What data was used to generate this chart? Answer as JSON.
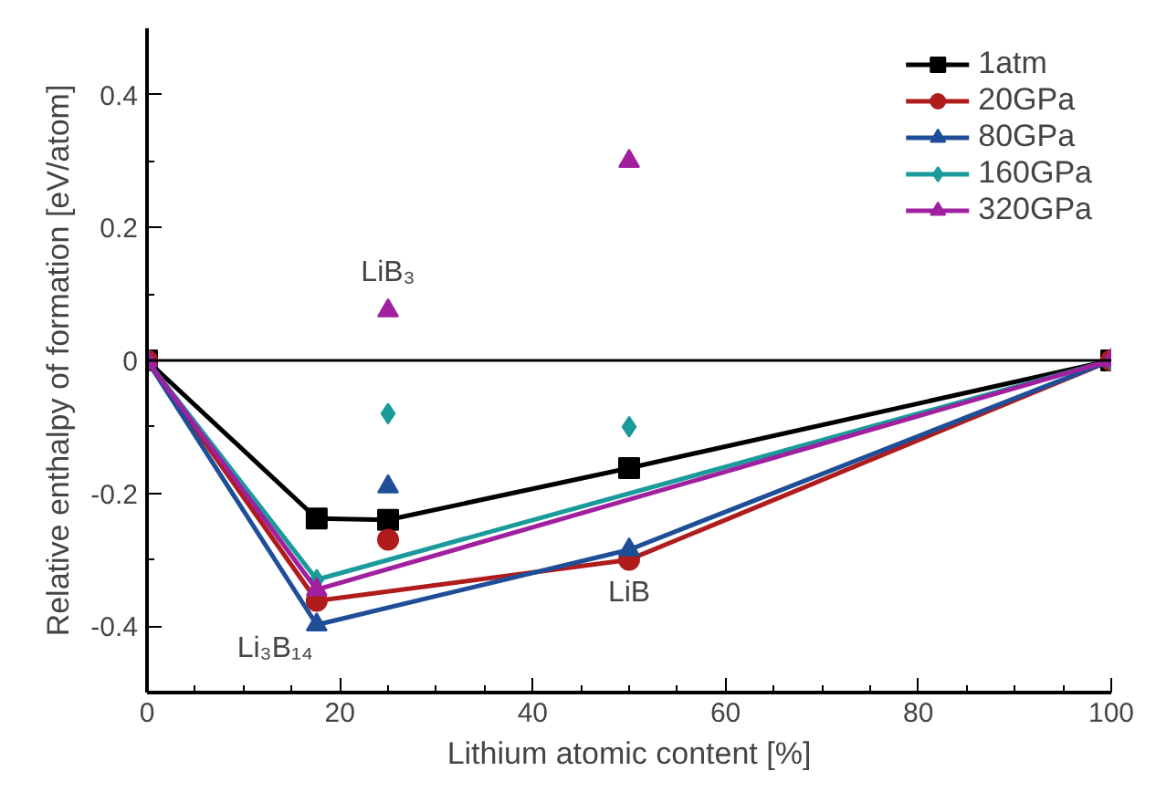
{
  "chart_data": {
    "type": "line",
    "xlabel": "Lithium atomic content [%]",
    "ylabel": "Relative enthalpy of formation [eV/atom]",
    "xlim": [
      0,
      100
    ],
    "ylim": [
      -0.5,
      0.5
    ],
    "xticks": [
      0,
      20,
      40,
      60,
      80,
      100
    ],
    "yticks": [
      {
        "value": -0.4,
        "label": "-0.4"
      },
      {
        "value": -0.2,
        "label": "-0.2"
      },
      0,
      {
        "value": 0.2,
        "label": "0.2"
      },
      {
        "value": 0.4,
        "label": "0.4"
      }
    ],
    "grid": false,
    "legend": "top right",
    "ref_lines": [
      {
        "axis": "y",
        "value": 0,
        "color": "#000000"
      }
    ],
    "annotations": [
      {
        "text": "LiB₃",
        "x": 25,
        "y": 0.075
      },
      {
        "text": "Li₃B₁₄",
        "x": 17.6,
        "y": -0.4
      },
      {
        "text": "LiB",
        "x": 50,
        "y": -0.3
      }
    ],
    "series": [
      {
        "name": "1atm",
        "color": "#000000",
        "marker": "square",
        "x": [
          0,
          17.6,
          25,
          50,
          100
        ],
        "values": [
          0,
          -0.238,
          -0.24,
          -0.162,
          0
        ]
      },
      {
        "name": "20GPa",
        "color": "#b01c1c",
        "marker": "circle",
        "x": [
          0,
          17.6,
          50,
          100
        ],
        "values": [
          0,
          -0.362,
          -0.3,
          0
        ]
      },
      {
        "name": "80GPa",
        "color": "#1f4e99",
        "marker": "triangle",
        "x": [
          0,
          17.6,
          50,
          100
        ],
        "values": [
          0,
          -0.398,
          -0.285,
          0
        ]
      },
      {
        "name": "160GPa",
        "color": "#1a9a9a",
        "marker": "diamond",
        "x": [
          0,
          17.6,
          100
        ],
        "values": [
          0,
          -0.33,
          0
        ]
      },
      {
        "name": "320GPa",
        "color": "#a020a0",
        "marker": "triangle",
        "x": [
          0,
          17.6,
          100
        ],
        "values": [
          0,
          -0.345,
          0
        ]
      },
      {
        "type": "scatter",
        "color": "#b01c1c",
        "marker": "circle",
        "x": [
          25
        ],
        "values": [
          -0.27
        ]
      },
      {
        "type": "scatter",
        "color": "#1f4e99",
        "marker": "triangle",
        "x": [
          25
        ],
        "values": [
          -0.19
        ]
      },
      {
        "type": "scatter",
        "color": "#1a9a9a",
        "marker": "diamond",
        "x": [
          25,
          50
        ],
        "values": [
          -0.08,
          -0.1
        ]
      },
      {
        "type": "scatter",
        "color": "#a020a0",
        "marker": "triangle",
        "x": [
          25,
          50
        ],
        "values": [
          0.075,
          0.3
        ]
      }
    ]
  }
}
